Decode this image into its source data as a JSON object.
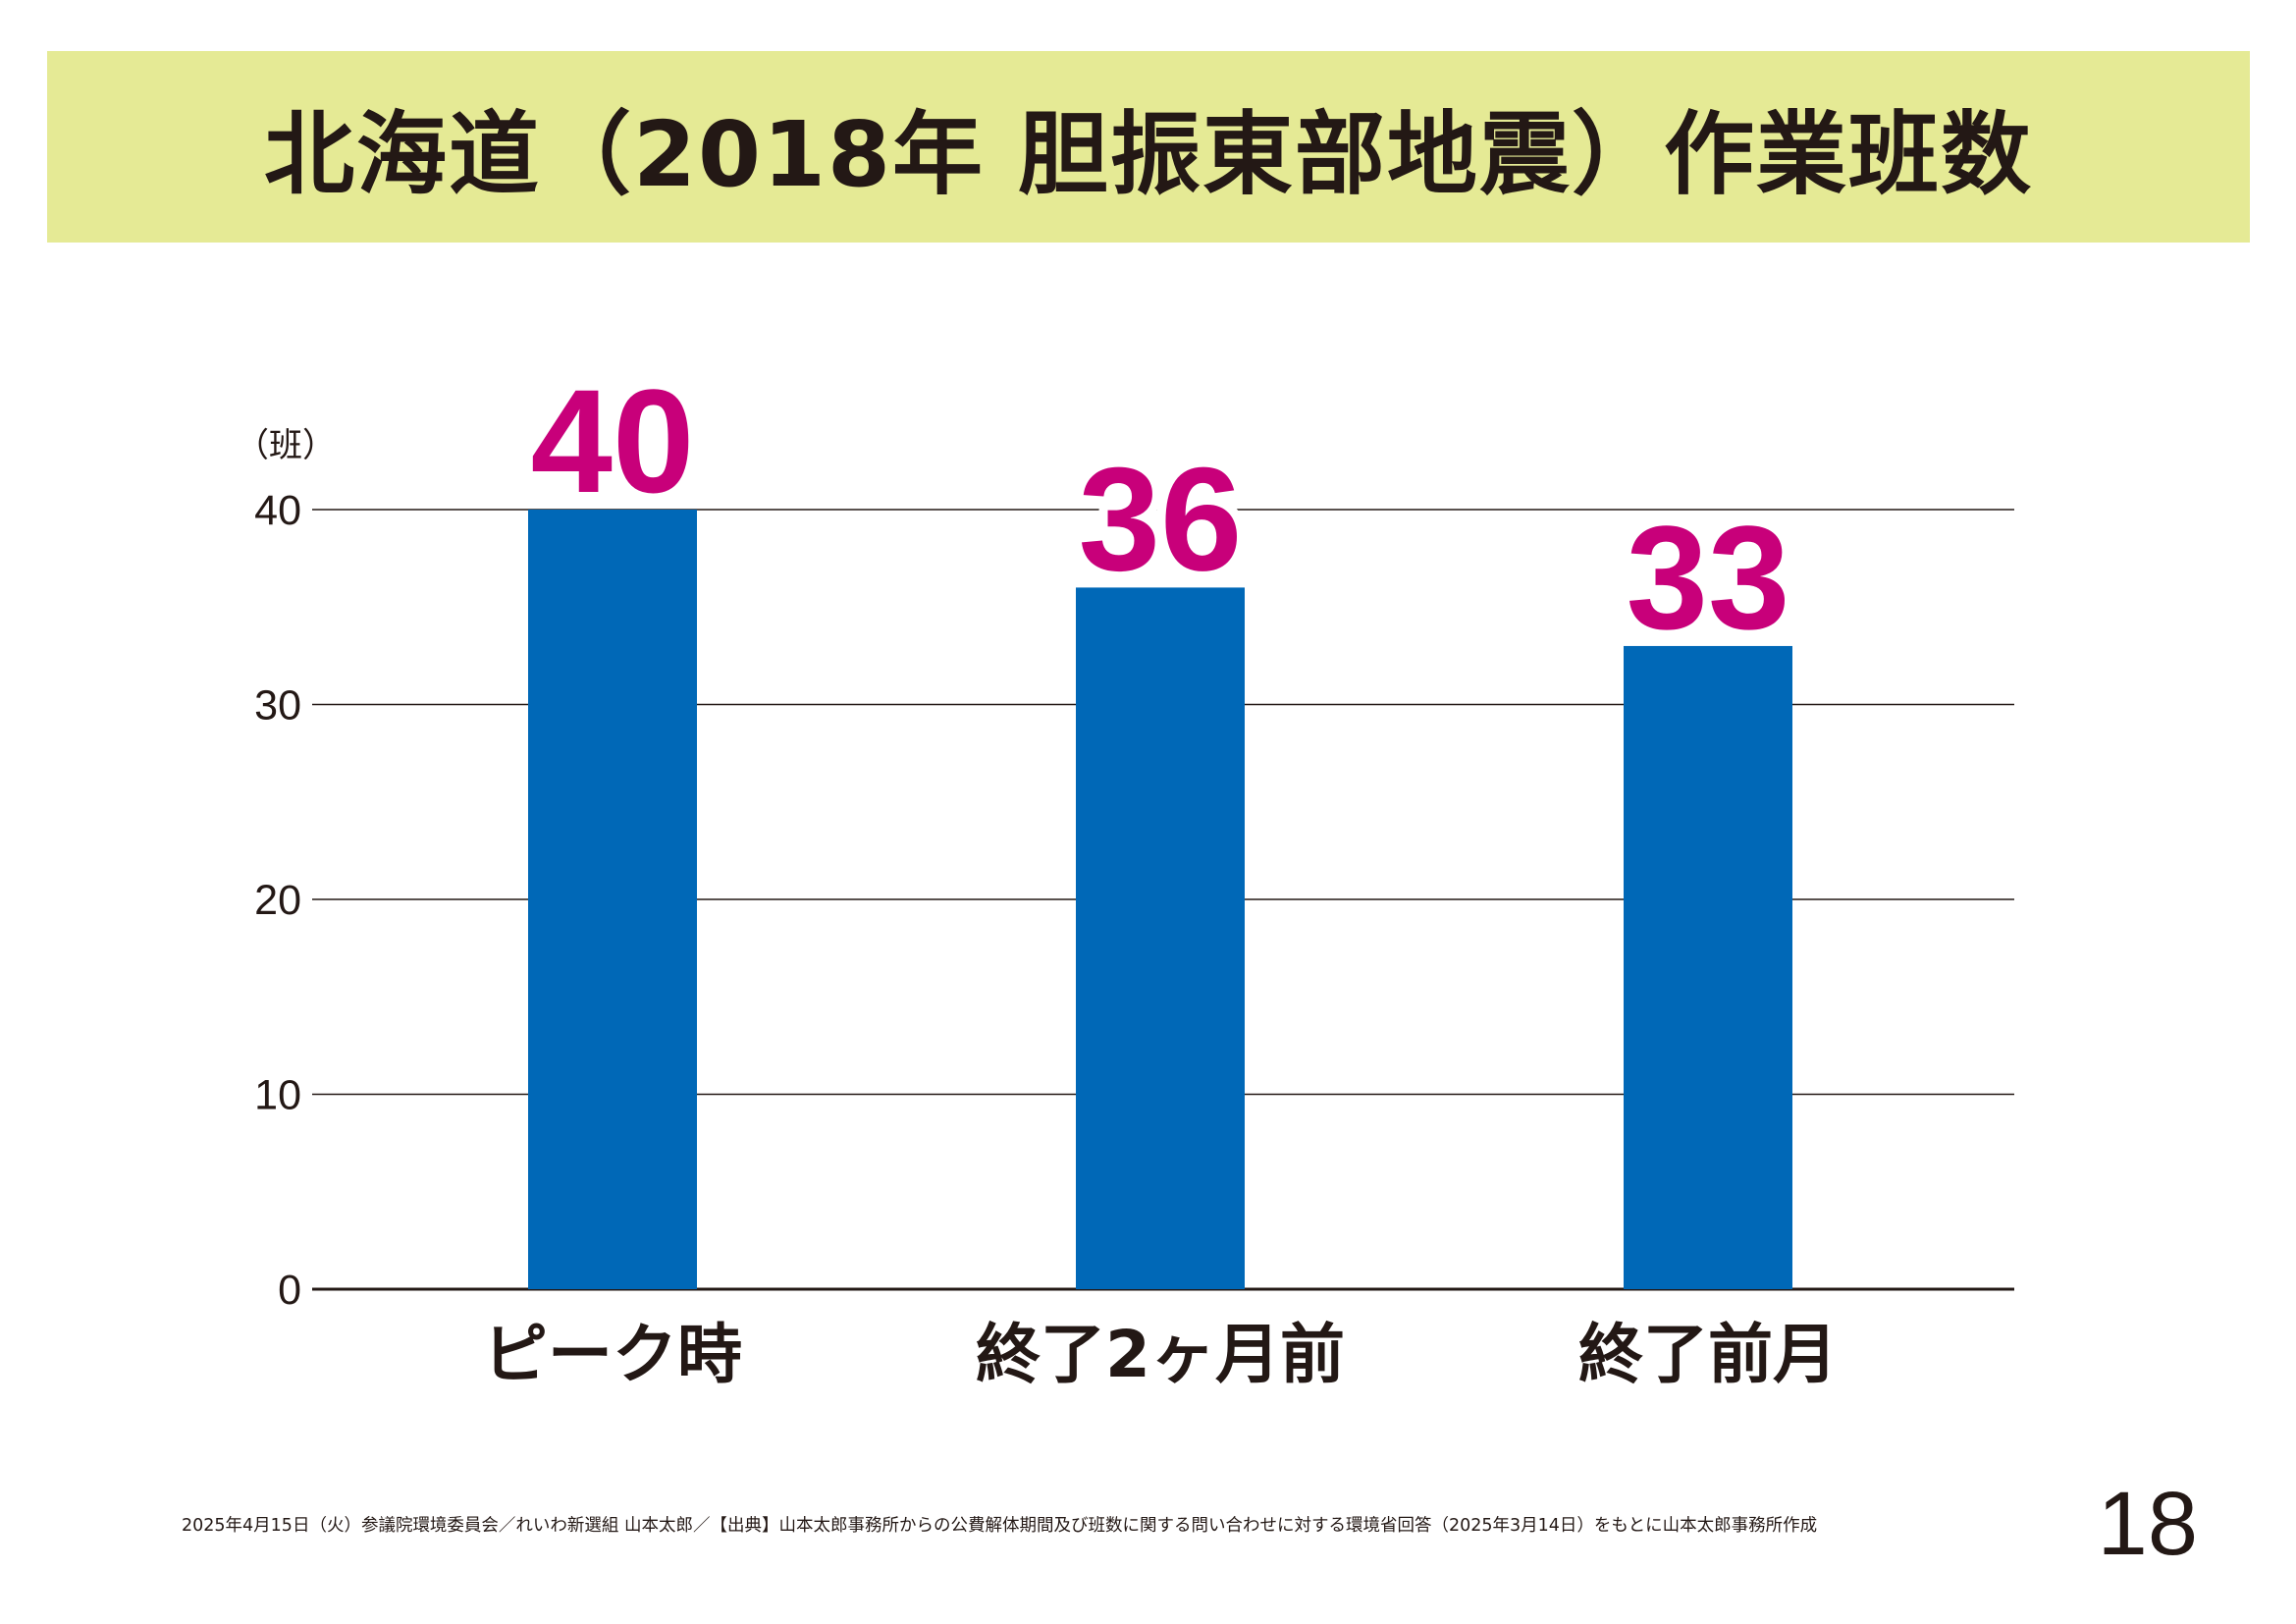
{
  "title": "北海道（2018年 胆振東部地震）作業班数",
  "chart_data": {
    "type": "bar",
    "categories": [
      "ピーク時",
      "終了2ヶ月前",
      "終了前月"
    ],
    "values": [
      40,
      36,
      33
    ],
    "data_labels": [
      "40",
      "36",
      "33"
    ],
    "unit_label": "（班）",
    "yticks": [
      0,
      10,
      20,
      30,
      40
    ],
    "ylim": [
      0,
      40
    ],
    "grid": true,
    "legend": "none",
    "colors": {
      "bar": "#0068b7",
      "data_label": "#c8007a",
      "grid": "#231815",
      "text": "#231815"
    }
  },
  "footer": {
    "note": "2025年4月15日（火）参議院環境委員会／れいわ新選組 山本太郎／【出典】山本太郎事務所からの公費解体期間及び班数に関する問い合わせに対する環境省回答（2025年3月14日）をもとに山本太郎事務所作成",
    "page_number": "18"
  }
}
